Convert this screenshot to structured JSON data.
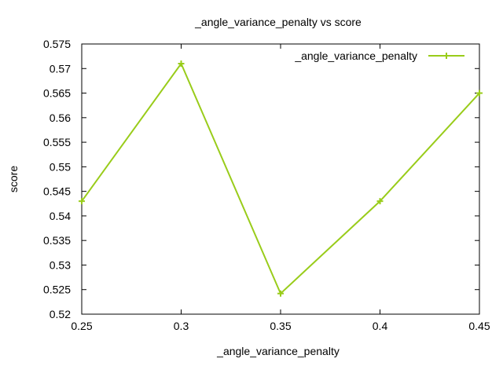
{
  "chart_data": {
    "type": "line",
    "title": "_angle_variance_penalty vs score",
    "xlabel": "_angle_variance_penalty",
    "ylabel": "score",
    "xlim": [
      0.25,
      0.45
    ],
    "ylim": [
      0.52,
      0.575
    ],
    "xticks": [
      "0.25",
      "0.3",
      "0.35",
      "0.4",
      "0.45"
    ],
    "yticks": [
      "0.52",
      "0.525",
      "0.53",
      "0.535",
      "0.54",
      "0.545",
      "0.55",
      "0.555",
      "0.56",
      "0.565",
      "0.57",
      "0.575"
    ],
    "grid": false,
    "legend_position": "top-right",
    "series": [
      {
        "name": "_angle_variance_penalty",
        "color": "#99cc1a",
        "marker": "plus",
        "x": [
          0.25,
          0.3,
          0.35,
          0.4,
          0.45
        ],
        "y": [
          0.543,
          0.571,
          0.5242,
          0.543,
          0.565
        ]
      }
    ]
  }
}
